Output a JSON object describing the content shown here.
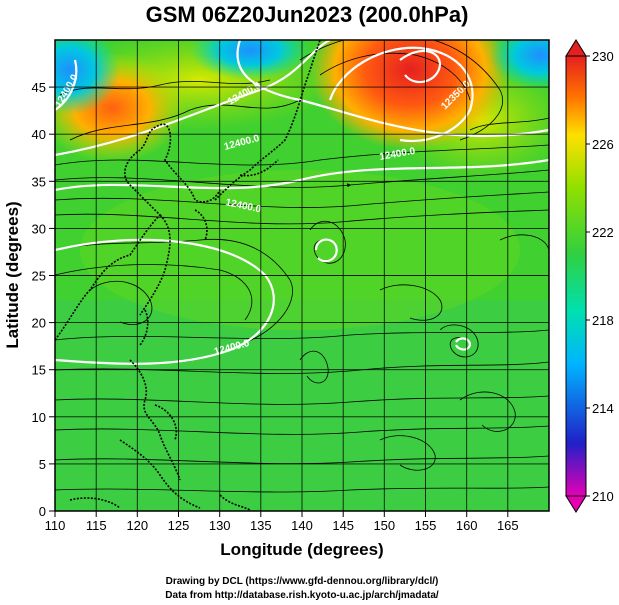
{
  "title": "GSM 06Z20Jun2023 (200.0hPa)",
  "xlabel": "Longitude (degrees)",
  "ylabel": "Latitude (degrees)",
  "xticks": [
    "110",
    "115",
    "120",
    "125",
    "130",
    "135",
    "140",
    "145",
    "150",
    "155",
    "160",
    "165"
  ],
  "yticks": [
    "0",
    "5",
    "10",
    "15",
    "20",
    "25",
    "30",
    "35",
    "40",
    "45"
  ],
  "colorbar": {
    "labels": [
      "210",
      "214",
      "218",
      "222",
      "226",
      "230"
    ],
    "min": 210,
    "max": 230,
    "colors": [
      "#e600b4",
      "#2020c8",
      "#00b4ff",
      "#00e0b0",
      "#30d040",
      "#90e000",
      "#ffe000",
      "#ff7000",
      "#e62020"
    ]
  },
  "contour_labels": [
    "12400.0",
    "12400.0",
    "12400.0",
    "12400.0",
    "12400.0",
    "12350.0",
    "12400.0"
  ],
  "credits": {
    "line1": "Drawing by DCL (https://www.gfd-dennou.org/library/dcl/)",
    "line2": "Data from http://database.rish.kyoto-u.ac.jp/arch/jmadata/"
  },
  "chart_data": {
    "type": "heatmap",
    "title": "GSM 06Z20Jun2023 (200.0hPa)",
    "xlabel": "Longitude (degrees)",
    "ylabel": "Latitude (degrees)",
    "xlim": [
      110,
      170
    ],
    "ylim": [
      0,
      50
    ],
    "colorbar_range": [
      210,
      230
    ],
    "grid": true,
    "features": [
      {
        "kind": "warm",
        "lon": 153,
        "lat": 46,
        "value": 229
      },
      {
        "kind": "warm",
        "lon": 118,
        "lat": 42,
        "value": 227
      },
      {
        "kind": "cold",
        "lon": 112,
        "lat": 47,
        "value": 217
      },
      {
        "kind": "cold",
        "lon": 137,
        "lat": 47,
        "value": 219
      },
      {
        "kind": "cold",
        "lon": 165,
        "lat": 47,
        "value": 219
      }
    ]
  }
}
